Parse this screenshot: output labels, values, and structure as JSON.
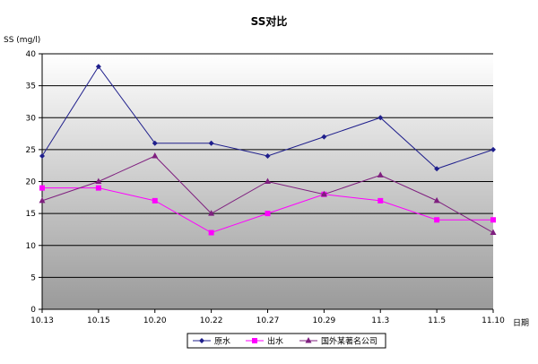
{
  "chart_data": {
    "type": "line",
    "title": "SS对比",
    "ylabel": "SS (mg/l)",
    "xlabel": "日期",
    "categories": [
      "10.13",
      "10.15",
      "10.20",
      "10.22",
      "10.27",
      "10.29",
      "11.3",
      "11.5",
      "11.10"
    ],
    "ylim": [
      0,
      40
    ],
    "yticks": [
      0,
      5,
      10,
      15,
      20,
      25,
      30,
      35,
      40
    ],
    "grid": true,
    "legend_position": "bottom",
    "series": [
      {
        "name": "原水",
        "color": "#1F1F8C",
        "marker": "diamond",
        "values": [
          24,
          38,
          26,
          26,
          24,
          27,
          30,
          22,
          25
        ]
      },
      {
        "name": "出水",
        "color": "#FF00FF",
        "marker": "square",
        "values": [
          19,
          19,
          17,
          12,
          15,
          18,
          17,
          14,
          14
        ]
      },
      {
        "name": "国外某著名公司",
        "color": "#7F1F7F",
        "marker": "triangle",
        "values": [
          17,
          20,
          24,
          15,
          20,
          18,
          21,
          17,
          12
        ]
      }
    ]
  }
}
